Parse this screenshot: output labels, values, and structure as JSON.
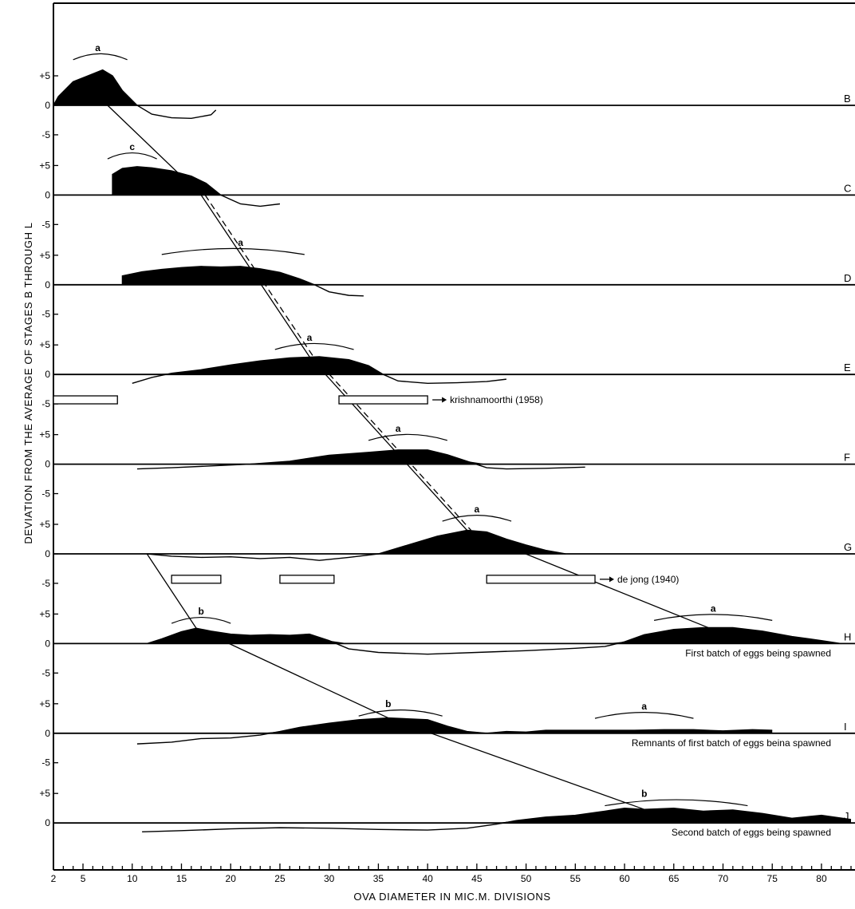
{
  "chart_data": {
    "type": "area",
    "xlabel": "OVA DIAMETER IN MIC.M. DIVISIONS",
    "ylabel": "DEVIATION FROM THE AVERAGE OF STAGES B THROUGH L",
    "xlim": [
      2,
      83
    ],
    "x_ticks": [
      2,
      5,
      10,
      15,
      20,
      25,
      30,
      35,
      40,
      45,
      50,
      55,
      60,
      65,
      70,
      75,
      80
    ],
    "y_range_per_panel": [
      -5,
      5
    ],
    "y_tick_labels": [
      "+5",
      "0",
      "-5"
    ],
    "grid": false,
    "panels": [
      {
        "stage": "B",
        "curve": [
          [
            2,
            0
          ],
          [
            2.5,
            1.5
          ],
          [
            4,
            4
          ],
          [
            5.5,
            5
          ],
          [
            7,
            6
          ],
          [
            8,
            5
          ],
          [
            9,
            2.5
          ],
          [
            10.5,
            0
          ],
          [
            12,
            -1.5
          ],
          [
            14,
            -2.1
          ],
          [
            16,
            -2.2
          ],
          [
            18,
            -1.6
          ],
          [
            18.5,
            -0.8
          ]
        ],
        "labels": [
          {
            "letter": "a",
            "x": 6.5
          }
        ],
        "arcs": [
          {
            "x0": 4,
            "x1": 9.5,
            "y": 8.4
          }
        ]
      },
      {
        "stage": "C",
        "curve": [
          [
            8,
            0
          ],
          [
            8,
            3.5
          ],
          [
            9,
            4.5
          ],
          [
            10.5,
            4.8
          ],
          [
            12,
            4.6
          ],
          [
            14,
            4.1
          ],
          [
            16,
            3.2
          ],
          [
            17.5,
            2
          ],
          [
            19,
            0
          ],
          [
            21,
            -1.5
          ],
          [
            23,
            -1.9
          ],
          [
            25,
            -1.5
          ]
        ],
        "labels": [
          {
            "letter": "c",
            "x": 10
          }
        ],
        "arcs": [
          {
            "x0": 7.5,
            "x1": 12.5,
            "y": 6.8
          }
        ]
      },
      {
        "stage": "D",
        "curve": [
          [
            9,
            0
          ],
          [
            9,
            1.5
          ],
          [
            11,
            2.2
          ],
          [
            13,
            2.6
          ],
          [
            15,
            2.9
          ],
          [
            17,
            3.1
          ],
          [
            19,
            3
          ],
          [
            21,
            3.1
          ],
          [
            23,
            2.7
          ],
          [
            25,
            2.1
          ],
          [
            27,
            1
          ],
          [
            28.5,
            0
          ],
          [
            30,
            -1.2
          ],
          [
            32,
            -1.8
          ],
          [
            33.5,
            -1.9
          ]
        ],
        "labels": [
          {
            "letter": "a",
            "x": 21
          }
        ],
        "arcs": [
          {
            "x0": 13,
            "x1": 27.5,
            "y": 5.8
          }
        ]
      },
      {
        "stage": "E",
        "curve": [
          [
            10,
            -1.5
          ],
          [
            12,
            -0.5
          ],
          [
            14,
            0.2
          ],
          [
            17,
            0.8
          ],
          [
            20,
            1.6
          ],
          [
            23,
            2.3
          ],
          [
            26,
            2.8
          ],
          [
            29,
            3
          ],
          [
            32,
            2.5
          ],
          [
            34,
            1.5
          ],
          [
            35.5,
            0
          ],
          [
            37,
            -1.1
          ],
          [
            40,
            -1.5
          ],
          [
            43,
            -1.4
          ],
          [
            46,
            -1.2
          ],
          [
            48,
            -0.8
          ]
        ],
        "labels": [
          {
            "letter": "a",
            "x": 28
          }
        ],
        "arcs": [
          {
            "x0": 24.5,
            "x1": 32.5,
            "y": 4.9
          }
        ]
      },
      {
        "stage": "F",
        "curve": [
          [
            10.5,
            -0.8
          ],
          [
            14,
            -0.6
          ],
          [
            18,
            -0.3
          ],
          [
            22,
            0
          ],
          [
            26,
            0.5
          ],
          [
            30,
            1.5
          ],
          [
            34,
            2
          ],
          [
            37,
            2.4
          ],
          [
            40,
            2.4
          ],
          [
            42,
            1.6
          ],
          [
            44,
            0.5
          ],
          [
            46,
            -0.6
          ],
          [
            48,
            -0.8
          ],
          [
            52,
            -0.7
          ],
          [
            56,
            -0.5
          ]
        ],
        "labels": [
          {
            "letter": "a",
            "x": 37
          }
        ],
        "arcs": [
          {
            "x0": 34,
            "x1": 42,
            "y": 4.7
          }
        ]
      },
      {
        "stage": "G",
        "curve": [
          [
            11.5,
            0
          ],
          [
            14,
            -0.4
          ],
          [
            17,
            -0.6
          ],
          [
            20,
            -0.5
          ],
          [
            23,
            -0.8
          ],
          [
            26,
            -0.6
          ],
          [
            29,
            -1.1
          ],
          [
            32,
            -0.6
          ],
          [
            35,
            0
          ],
          [
            38,
            1.5
          ],
          [
            41,
            3
          ],
          [
            44,
            4
          ],
          [
            46,
            3.7
          ],
          [
            48,
            2.5
          ],
          [
            50,
            1.5
          ],
          [
            52,
            0.6
          ],
          [
            54,
            0
          ]
        ],
        "labels": [
          {
            "letter": "a",
            "x": 45
          }
        ],
        "arcs": [
          {
            "x0": 41.5,
            "x1": 48.5,
            "y": 6.2
          }
        ]
      },
      {
        "stage": "H",
        "curve": [
          [
            11.5,
            0
          ],
          [
            13,
            0.8
          ],
          [
            15,
            2
          ],
          [
            16.5,
            2.6
          ],
          [
            18,
            2.1
          ],
          [
            20,
            1.6
          ],
          [
            22,
            1.4
          ],
          [
            24,
            1.5
          ],
          [
            26,
            1.4
          ],
          [
            28,
            1.6
          ],
          [
            30,
            0.5
          ],
          [
            32,
            -0.9
          ],
          [
            35,
            -1.5
          ],
          [
            40,
            -1.8
          ],
          [
            45,
            -1.5
          ],
          [
            50,
            -1.2
          ],
          [
            55,
            -0.8
          ],
          [
            58,
            -0.5
          ],
          [
            60,
            0.3
          ],
          [
            62,
            1.5
          ],
          [
            65,
            2.4
          ],
          [
            68,
            2.7
          ],
          [
            71,
            2.7
          ],
          [
            74,
            2.1
          ],
          [
            77,
            1.2
          ],
          [
            80,
            0.5
          ],
          [
            82,
            0
          ]
        ],
        "labels": [
          {
            "letter": "b",
            "x": 17
          },
          {
            "letter": "a",
            "x": 69
          }
        ],
        "arcs": [
          {
            "x0": 14,
            "x1": 20,
            "y": 4.1
          },
          {
            "x0": 63,
            "x1": 75,
            "y": 4.6
          }
        ],
        "caption": "First batch of eggs being spawned"
      },
      {
        "stage": "I",
        "curve": [
          [
            10.5,
            -1.8
          ],
          [
            14,
            -1.5
          ],
          [
            17,
            -0.9
          ],
          [
            20,
            -0.8
          ],
          [
            23,
            -0.3
          ],
          [
            25,
            0.3
          ],
          [
            27,
            1
          ],
          [
            30,
            1.7
          ],
          [
            33,
            2.3
          ],
          [
            36,
            2.6
          ],
          [
            40,
            2.3
          ],
          [
            42,
            1.2
          ],
          [
            44,
            0.3
          ],
          [
            46,
            0
          ],
          [
            48,
            0.3
          ],
          [
            50,
            0.2
          ],
          [
            52,
            0.5
          ],
          [
            55,
            0.5
          ],
          [
            58,
            0.5
          ],
          [
            61,
            0.5
          ],
          [
            64,
            0.6
          ],
          [
            67,
            0.6
          ],
          [
            70,
            0.4
          ],
          [
            73,
            0.6
          ],
          [
            75,
            0.5
          ]
        ],
        "labels": [
          {
            "letter": "b",
            "x": 36
          },
          {
            "letter": "a",
            "x": 62
          }
        ],
        "arcs": [
          {
            "x0": 33,
            "x1": 41.5,
            "y": 3.6
          },
          {
            "x0": 57,
            "x1": 67,
            "y": 3.2
          }
        ],
        "caption": "Remnants of first batch of eggs beina spawned"
      },
      {
        "stage": "J",
        "curve": [
          [
            11,
            -1.5
          ],
          [
            15,
            -1.3
          ],
          [
            20,
            -1
          ],
          [
            25,
            -0.8
          ],
          [
            30,
            -0.9
          ],
          [
            35,
            -1.1
          ],
          [
            40,
            -1.2
          ],
          [
            44,
            -0.9
          ],
          [
            47,
            -0.2
          ],
          [
            49,
            0.4
          ],
          [
            52,
            1
          ],
          [
            55,
            1.3
          ],
          [
            58,
            2
          ],
          [
            60,
            2.5
          ],
          [
            62,
            2.3
          ],
          [
            65,
            2.5
          ],
          [
            68,
            2
          ],
          [
            71,
            2.2
          ],
          [
            74,
            1.6
          ],
          [
            77,
            0.8
          ],
          [
            80,
            1.3
          ],
          [
            83,
            0.6
          ]
        ],
        "labels": [
          {
            "letter": "b",
            "x": 62
          }
        ],
        "arcs": [
          {
            "x0": 58,
            "x1": 72.5,
            "y": 3.6
          }
        ],
        "caption": "Second batch of eggs being spawned"
      }
    ],
    "trend_lines": [
      {
        "style": "solid",
        "points": [
          [
            7.5,
            "B",
            0
          ],
          [
            17,
            "C",
            0
          ],
          [
            28,
            "E",
            3
          ],
          [
            44,
            "G",
            4
          ]
        ]
      },
      {
        "style": "dashed",
        "points": [
          [
            17,
            "C",
            0
          ],
          [
            28,
            "E",
            3
          ],
          [
            44,
            "G",
            4
          ]
        ]
      },
      {
        "style": "solid",
        "points": [
          [
            44,
            "G",
            4
          ],
          [
            68.5,
            "H",
            2.7
          ]
        ]
      },
      {
        "style": "solid",
        "points": [
          [
            11.5,
            "G",
            0
          ],
          [
            16.5,
            "H",
            2.6
          ],
          [
            36,
            "I",
            2.6
          ],
          [
            62,
            "J",
            2.3
          ]
        ]
      }
    ],
    "range_bars": [
      {
        "label": "krishnamoorthi (1958)",
        "band": "E",
        "y": -4.3,
        "ranges": [
          [
            2,
            8.5
          ],
          [
            31,
            40
          ]
        ]
      },
      {
        "label": "de   jong (1940)",
        "band": "G",
        "y": -4.3,
        "ranges": [
          [
            14,
            19
          ],
          [
            25,
            30.5
          ],
          [
            46,
            57
          ]
        ]
      }
    ]
  }
}
